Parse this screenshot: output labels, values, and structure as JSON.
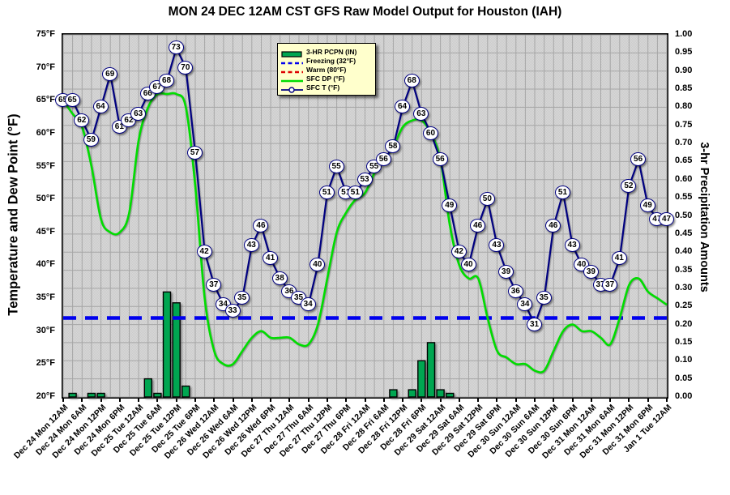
{
  "title": "MON 24 DEC 12AM CST GFS Raw Model Output for Houston (IAH)",
  "colors": {
    "temperature_line": "#000080",
    "dewpoint_line": "#00dd00",
    "freezing_line": "#0000ee",
    "warm_line": "#dd0000",
    "precip_bar_fill": "#00a651",
    "precip_bar_border": "#000000",
    "plot_background": "#d3d3d3",
    "gridline": "#a6a6a6",
    "legend_background": "#ffffcc",
    "marker_fill": "#ffffff"
  },
  "y_left": {
    "title": "Temperature and Dew Point (°F)",
    "ticks": [
      "75°F",
      "70°F",
      "65°F",
      "60°F",
      "55°F",
      "50°F",
      "45°F",
      "40°F",
      "35°F",
      "30°F",
      "25°F",
      "20°F"
    ]
  },
  "y_right": {
    "title": "3-hr Precipitation Amounts",
    "ticks": [
      "1.00",
      "0.95",
      "0.90",
      "0.85",
      "0.80",
      "0.75",
      "0.70",
      "0.65",
      "0.60",
      "0.55",
      "0.50",
      "0.45",
      "0.40",
      "0.35",
      "0.30",
      "0.25",
      "0.20",
      "0.15",
      "0.10",
      "0.05",
      "0.00"
    ]
  },
  "legend": {
    "items": [
      {
        "label": "3-HR PCPN (IN)",
        "type": "bar",
        "color": "#00a651"
      },
      {
        "label": "Freezing (32°F)",
        "type": "dash",
        "color": "#0000ee"
      },
      {
        "label": "Warm (80°F)",
        "type": "dash",
        "color": "#dd0000"
      },
      {
        "label": "SFC DP (°F)",
        "type": "line",
        "color": "#00dd00"
      },
      {
        "label": "SFC T (°F)",
        "type": "line-marker",
        "color": "#000080"
      }
    ]
  },
  "chart_data": {
    "type": "combo",
    "time_step_hours": 3,
    "n_points": 65,
    "ylim_left": [
      20,
      75
    ],
    "ylim_right": [
      0.0,
      1.0
    ],
    "grid": "on",
    "legend_position": "top-center-left",
    "x_tick_labels": [
      "Dec 24 Mon 12AM",
      "Dec 24 Mon 6AM",
      "Dec 24 Mon 12PM",
      "Dec 24 Mon 6PM",
      "Dec 25 Tue 12AM",
      "Dec 25 Tue 6AM",
      "Dec 25 Tue 12PM",
      "Dec 25 Tue 6PM",
      "Dec 26 Wed 12AM",
      "Dec 26 Wed 6AM",
      "Dec 26 Wed 12PM",
      "Dec 26 Wed 6PM",
      "Dec 27 Thu 12AM",
      "Dec 27 Thu 6AM",
      "Dec 27 Thu 12PM",
      "Dec 27 Thu 6PM",
      "Dec 28 Fri 12AM",
      "Dec 28 Fri 6AM",
      "Dec 28 Fri 12PM",
      "Dec 28 Fri 6PM",
      "Dec 29 Sat 12AM",
      "Dec 29 Sat 6AM",
      "Dec 29 Sat 12PM",
      "Dec 29 Sat 6PM",
      "Dec 30 Sun 12AM",
      "Dec 30 Sun 6AM",
      "Dec 30 Sun 12PM",
      "Dec 30 Sun 6PM",
      "Dec 31 Mon 12AM",
      "Dec 31 Mon 6AM",
      "Dec 31 Mon 12PM",
      "Dec 31 Mon 6PM",
      "Jan 1 Tue 12AM"
    ],
    "series": [
      {
        "name": "SFC T (°F)",
        "type": "line",
        "axis": "left",
        "labeled_points": true,
        "values": [
          65,
          65,
          62,
          59,
          64,
          69,
          61,
          62,
          63,
          66,
          67,
          68,
          73,
          70,
          57,
          42,
          37,
          34,
          33,
          35,
          43,
          46,
          41,
          38,
          36,
          35,
          34,
          40,
          51,
          55,
          51,
          51,
          53,
          55,
          56,
          58,
          64,
          68,
          63,
          60,
          56,
          49,
          42,
          40,
          46,
          50,
          43,
          39,
          36,
          34,
          31,
          35,
          46,
          51,
          43,
          40,
          39,
          37,
          37,
          41,
          52,
          56,
          49,
          47,
          47
        ]
      },
      {
        "name": "SFC DP (°F)",
        "type": "line",
        "axis": "left",
        "labeled_points": false,
        "values": [
          65,
          63,
          61,
          55,
          47,
          45,
          45,
          48,
          59,
          64,
          66,
          66,
          66,
          64,
          52,
          35,
          27,
          25,
          25,
          27,
          29,
          30,
          29,
          29,
          29,
          28,
          28,
          31,
          38,
          45,
          48,
          50,
          51,
          54,
          56,
          58,
          61,
          62,
          62,
          60,
          56,
          46,
          40,
          38,
          38,
          32,
          27,
          26,
          25,
          25,
          24,
          24,
          27,
          30,
          31,
          30,
          30,
          29,
          28,
          32,
          37,
          38,
          36,
          35,
          34
        ]
      },
      {
        "name": "3-HR PCPN (IN)",
        "type": "bar",
        "axis": "right",
        "values": [
          0,
          0.01,
          0,
          0.01,
          0.01,
          0,
          0,
          0,
          0,
          0.05,
          0.01,
          0.29,
          0.26,
          0.03,
          0,
          0,
          0,
          0,
          0,
          0,
          0,
          0,
          0,
          0,
          0,
          0,
          0,
          0,
          0,
          0,
          0,
          0,
          0,
          0,
          0,
          0.02,
          0,
          0.02,
          0.1,
          0.15,
          0.02,
          0.01,
          0,
          0,
          0,
          0,
          0,
          0,
          0,
          0,
          0,
          0,
          0,
          0,
          0,
          0,
          0,
          0,
          0,
          0,
          0,
          0,
          0,
          0,
          0
        ]
      },
      {
        "name": "Freezing (32°F)",
        "type": "hline",
        "axis": "left",
        "value": 32,
        "visible": true
      },
      {
        "name": "Warm (80°F)",
        "type": "hline",
        "axis": "left",
        "value": 80,
        "visible": false
      }
    ]
  }
}
